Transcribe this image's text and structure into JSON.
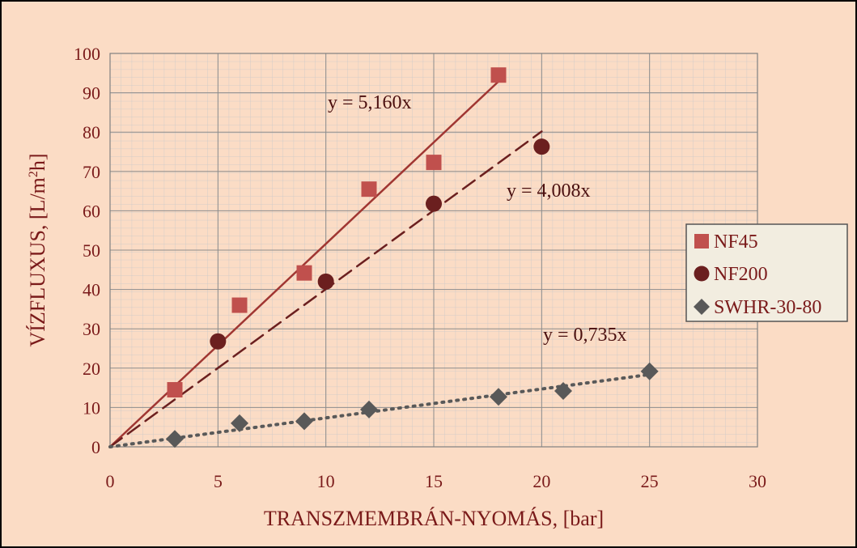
{
  "chart_data": {
    "type": "scatter",
    "title": "",
    "xlabel": "TRANSZMEMBRÁN-NYOMÁS, [bar]",
    "ylabel": "VÍZFLUXUS, [L/m²h]",
    "ylabel_parts": {
      "main": "VÍZFLUXUS, [L/m",
      "sup": "2",
      "tail": "h]"
    },
    "xlim": [
      0,
      30
    ],
    "ylim": [
      0,
      100
    ],
    "xticks": [
      0,
      5,
      10,
      15,
      20,
      25,
      30
    ],
    "yticks": [
      0,
      10,
      20,
      30,
      40,
      50,
      60,
      70,
      80,
      90,
      100
    ],
    "grid": true,
    "legend_position": "right",
    "series": [
      {
        "name": "NF45",
        "marker": "square",
        "color": "#c0504d",
        "points": [
          [
            3,
            14.5
          ],
          [
            6,
            36
          ],
          [
            9,
            44.2
          ],
          [
            12,
            65.5
          ],
          [
            15,
            72.3
          ],
          [
            18,
            94.5
          ]
        ],
        "trend": {
          "slope": 5.16,
          "x_end": 18,
          "style": "solid",
          "color": "#a03632",
          "label": "y = 5,160x"
        }
      },
      {
        "name": "NF200",
        "marker": "circle",
        "color": "#6b1f1f",
        "points": [
          [
            5,
            26.8
          ],
          [
            10,
            42
          ],
          [
            15,
            61.8
          ],
          [
            20,
            76.3
          ]
        ],
        "trend": {
          "slope": 4.008,
          "x_end": 20,
          "style": "dashed",
          "color": "#6b1f1f",
          "label": "y = 4,008x"
        }
      },
      {
        "name": "SWHR-30-80",
        "marker": "diamond",
        "color": "#595959",
        "points": [
          [
            3,
            2
          ],
          [
            6,
            6
          ],
          [
            9,
            6.5
          ],
          [
            12,
            9.5
          ],
          [
            18,
            12.7
          ],
          [
            21,
            14.2
          ],
          [
            25,
            19.2
          ]
        ],
        "trend": {
          "slope": 0.735,
          "x_end": 25,
          "style": "dotted",
          "color": "#595959",
          "label": "y = 0,735x"
        }
      }
    ]
  }
}
